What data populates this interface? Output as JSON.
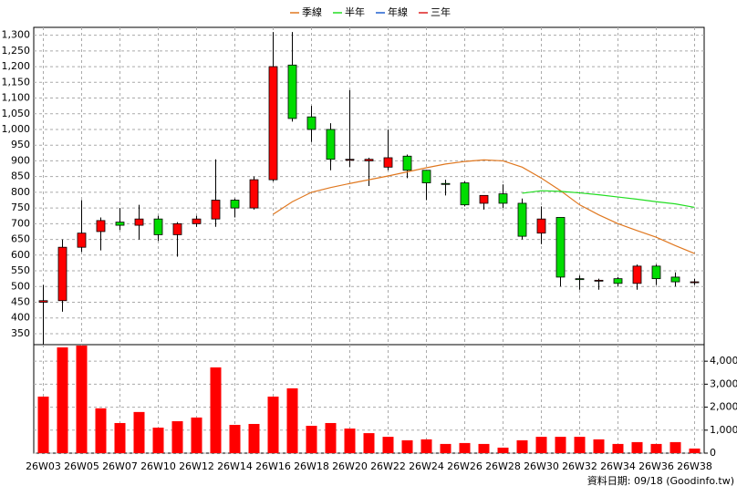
{
  "chart_data": {
    "type": "candlestick",
    "categories": [
      "26W03",
      null,
      "26W05",
      null,
      "26W07",
      null,
      "26W10",
      null,
      "26W12",
      null,
      "26W14",
      null,
      "26W16",
      null,
      "26W18",
      null,
      "26W20",
      null,
      "26W22",
      null,
      "26W24",
      null,
      "26W26",
      null,
      "26W28",
      null,
      "26W30",
      null,
      "26W32",
      null,
      "26W34",
      null,
      "26W36",
      null,
      "26W38"
    ],
    "open": [
      450,
      455,
      625,
      675,
      705,
      695,
      715,
      665,
      700,
      715,
      775,
      750,
      840,
      1205,
      1040,
      1000,
      905,
      900,
      880,
      915,
      870,
      828,
      830,
      765,
      795,
      765,
      670,
      720,
      525,
      520,
      525,
      510,
      565,
      530,
      515
    ],
    "high": [
      505,
      650,
      775,
      720,
      750,
      760,
      725,
      705,
      725,
      905,
      780,
      850,
      1310,
      1310,
      1075,
      1020,
      1125,
      910,
      1000,
      920,
      870,
      840,
      835,
      790,
      825,
      780,
      755,
      720,
      535,
      525,
      530,
      570,
      570,
      545,
      525
    ],
    "low": [
      315,
      420,
      610,
      615,
      680,
      650,
      645,
      595,
      690,
      690,
      720,
      745,
      835,
      1025,
      960,
      870,
      880,
      820,
      870,
      845,
      775,
      790,
      755,
      745,
      750,
      650,
      635,
      500,
      490,
      490,
      500,
      490,
      505,
      500,
      505
    ],
    "close": [
      455,
      625,
      670,
      710,
      695,
      715,
      665,
      700,
      715,
      775,
      750,
      840,
      1200,
      1035,
      1000,
      905,
      905,
      905,
      910,
      870,
      830,
      825,
      760,
      790,
      765,
      660,
      715,
      530,
      522,
      520,
      510,
      565,
      525,
      515,
      515
    ],
    "up_color": "#ff0000",
    "down_color": "#00dd00",
    "ylim": [
      315,
      1325
    ],
    "yticks": [
      350,
      400,
      450,
      500,
      550,
      600,
      650,
      700,
      750,
      800,
      850,
      900,
      950,
      {
        "value": 1000,
        "label": "1,000"
      },
      {
        "value": 1050,
        "label": "1,050"
      },
      {
        "value": 1100,
        "label": "1,100"
      },
      {
        "value": 1150,
        "label": "1,150"
      },
      {
        "value": 1200,
        "label": "1,200"
      },
      {
        "value": 1250,
        "label": "1,250"
      },
      {
        "value": 1300,
        "label": "1,300"
      }
    ],
    "series": [
      {
        "name": "季線",
        "color": "#e07820",
        "values": [
          null,
          null,
          null,
          null,
          null,
          null,
          null,
          null,
          null,
          null,
          null,
          null,
          730,
          770,
          800,
          815,
          828,
          840,
          852,
          865,
          878,
          890,
          898,
          903,
          900,
          880,
          845,
          805,
          760,
          728,
          700,
          678,
          657,
          630,
          605
        ]
      },
      {
        "name": "半年",
        "color": "#22dd22",
        "values": [
          null,
          null,
          null,
          null,
          null,
          null,
          null,
          null,
          null,
          null,
          null,
          null,
          null,
          null,
          null,
          null,
          null,
          null,
          null,
          null,
          null,
          null,
          null,
          null,
          null,
          797,
          805,
          803,
          798,
          792,
          785,
          778,
          770,
          763,
          752
        ]
      },
      {
        "name": "年線",
        "color": "#2060d0",
        "values": [
          null,
          null,
          null,
          null,
          null,
          null,
          null,
          null,
          null,
          null,
          null,
          null,
          null,
          null,
          null,
          null,
          null,
          null,
          null,
          null,
          null,
          null,
          null,
          null,
          null,
          null,
          null,
          null,
          null,
          null,
          null,
          null,
          null,
          null,
          null
        ]
      },
      {
        "name": "三年",
        "color": "#dd2020",
        "values": [
          null,
          null,
          null,
          null,
          null,
          null,
          null,
          null,
          null,
          null,
          null,
          null,
          null,
          null,
          null,
          null,
          null,
          null,
          null,
          null,
          null,
          null,
          null,
          null,
          null,
          null,
          null,
          null,
          null,
          null,
          null,
          null,
          null,
          null,
          null
        ]
      }
    ],
    "volume": {
      "color": "#ff0000",
      "values": [
        2460,
        4600,
        4680,
        1950,
        1310,
        1790,
        1110,
        1390,
        1550,
        3730,
        1230,
        1270,
        2460,
        2820,
        1190,
        1310,
        1070,
        870,
        710,
        560,
        600,
        400,
        440,
        400,
        240,
        560,
        710,
        710,
        710,
        600,
        400,
        480,
        400,
        480,
        200
      ],
      "ylim": [
        0,
        4720
      ],
      "yticks": [
        0,
        {
          "value": 1000,
          "label": "1,000"
        },
        {
          "value": 2000,
          "label": "2,000"
        },
        {
          "value": 3000,
          "label": "3,000"
        },
        {
          "value": 4000,
          "label": "4,000"
        }
      ]
    },
    "grid": true,
    "note": "資料日期: 09/18 (Goodinfo.tw)"
  }
}
